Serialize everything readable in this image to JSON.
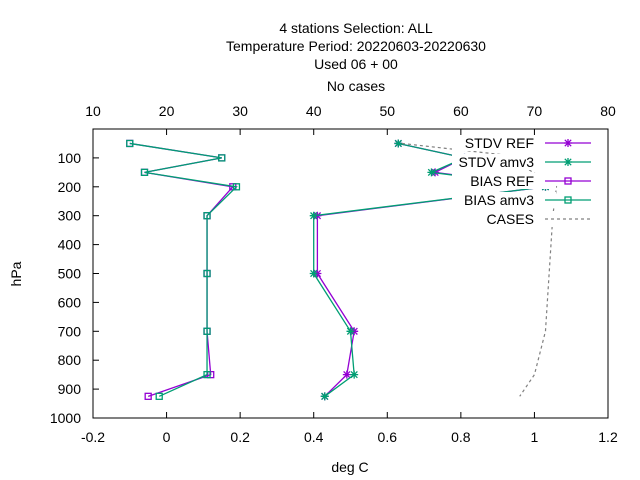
{
  "chart_data": {
    "type": "line",
    "title": [
      "4 stations Selection: ALL",
      "Temperature  Period: 20220603-20220630",
      "Used  06  + 00",
      "No cases"
    ],
    "xlabel": "deg C",
    "ylabel": "hPa",
    "x_range": [
      -0.2,
      1.2
    ],
    "x_ticks": [
      "-0.2",
      "0",
      "0.2",
      "0.4",
      "0.6",
      "0.8",
      "1",
      "1.2"
    ],
    "x2_range": [
      10,
      80
    ],
    "x2_ticks": [
      "10",
      "20",
      "30",
      "40",
      "50",
      "60",
      "70",
      "80"
    ],
    "y_range": [
      1000,
      0
    ],
    "y_ticks": [
      "100",
      "200",
      "300",
      "400",
      "500",
      "600",
      "700",
      "800",
      "900",
      "1000"
    ],
    "grid": false,
    "legend_position": "top-right",
    "series": [
      {
        "name": "STDV REF",
        "color": "#9400d3",
        "marker": "star",
        "points": [
          [
            0.63,
            50
          ],
          [
            0.81,
            100
          ],
          [
            0.73,
            150
          ],
          [
            1.03,
            200
          ],
          [
            0.41,
            300
          ],
          [
            0.41,
            500
          ],
          [
            0.51,
            700
          ],
          [
            0.49,
            850
          ],
          [
            0.43,
            925
          ]
        ]
      },
      {
        "name": "STDV amv3",
        "color": "#009e73",
        "marker": "star",
        "points": [
          [
            0.63,
            50
          ],
          [
            0.81,
            100
          ],
          [
            0.72,
            150
          ],
          [
            1.03,
            200
          ],
          [
            0.4,
            300
          ],
          [
            0.4,
            500
          ],
          [
            0.5,
            700
          ],
          [
            0.51,
            850
          ],
          [
            0.43,
            925
          ]
        ]
      },
      {
        "name": "BIAS REF",
        "color": "#9400d3",
        "marker": "square",
        "points": [
          [
            -0.1,
            50
          ],
          [
            0.15,
            100
          ],
          [
            -0.06,
            150
          ],
          [
            0.18,
            200
          ],
          [
            0.11,
            300
          ],
          [
            0.11,
            500
          ],
          [
            0.11,
            700
          ],
          [
            0.12,
            850
          ],
          [
            -0.05,
            925
          ]
        ]
      },
      {
        "name": "BIAS amv3",
        "color": "#009e73",
        "marker": "square",
        "points": [
          [
            -0.1,
            50
          ],
          [
            0.15,
            100
          ],
          [
            -0.06,
            150
          ],
          [
            0.19,
            200
          ],
          [
            0.11,
            300
          ],
          [
            0.11,
            500
          ],
          [
            0.11,
            700
          ],
          [
            0.11,
            850
          ],
          [
            -0.02,
            925
          ]
        ]
      },
      {
        "name": "CASES",
        "color": "#808080",
        "marker": "none",
        "dash": true,
        "axis": "top",
        "points": [
          [
            52,
            50
          ],
          [
            66,
            90
          ],
          [
            73,
            200
          ],
          [
            72.5,
            300
          ],
          [
            72,
            500
          ],
          [
            71.5,
            700
          ],
          [
            70,
            850
          ],
          [
            68,
            925
          ]
        ]
      }
    ]
  }
}
